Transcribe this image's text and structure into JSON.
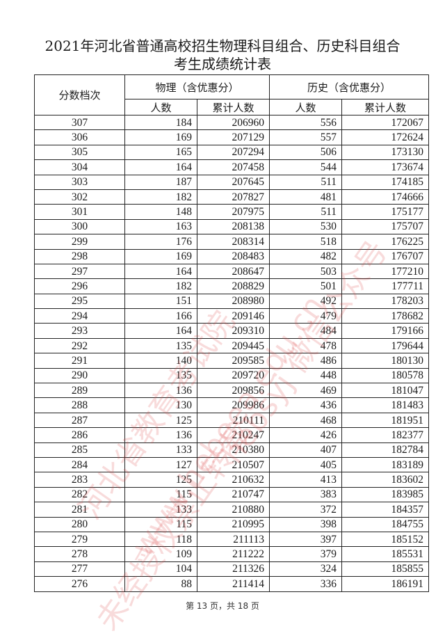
{
  "title": {
    "line1": "2021年河北省普通高校招生物理科目组合、历史科目组合",
    "line2": "考生成绩统计表"
  },
  "table": {
    "header_score": "分数档次",
    "group_physics": "物理（含优惠分）",
    "group_history": "历史（含优惠分）",
    "col_count": "人数",
    "col_cumulative": "累计人数",
    "rows": [
      [
        "307",
        "184",
        "206960",
        "556",
        "172067"
      ],
      [
        "306",
        "169",
        "207129",
        "557",
        "172624"
      ],
      [
        "305",
        "165",
        "207294",
        "506",
        "173130"
      ],
      [
        "304",
        "164",
        "207458",
        "544",
        "173674"
      ],
      [
        "303",
        "187",
        "207645",
        "511",
        "174185"
      ],
      [
        "302",
        "182",
        "207827",
        "481",
        "174666"
      ],
      [
        "301",
        "148",
        "207975",
        "511",
        "175177"
      ],
      [
        "300",
        "163",
        "208138",
        "530",
        "175707"
      ],
      [
        "299",
        "176",
        "208314",
        "518",
        "176225"
      ],
      [
        "298",
        "169",
        "208483",
        "482",
        "176707"
      ],
      [
        "297",
        "164",
        "208647",
        "503",
        "177210"
      ],
      [
        "296",
        "182",
        "208829",
        "501",
        "177711"
      ],
      [
        "295",
        "151",
        "208980",
        "492",
        "178203"
      ],
      [
        "294",
        "166",
        "209146",
        "479",
        "178682"
      ],
      [
        "293",
        "164",
        "209310",
        "484",
        "179166"
      ],
      [
        "292",
        "135",
        "209445",
        "478",
        "179644"
      ],
      [
        "291",
        "140",
        "209585",
        "486",
        "180130"
      ],
      [
        "290",
        "135",
        "209720",
        "448",
        "180578"
      ],
      [
        "289",
        "136",
        "209856",
        "469",
        "181047"
      ],
      [
        "288",
        "130",
        "209986",
        "436",
        "181483"
      ],
      [
        "287",
        "125",
        "210111",
        "468",
        "181951"
      ],
      [
        "286",
        "136",
        "210247",
        "426",
        "182377"
      ],
      [
        "285",
        "133",
        "210380",
        "407",
        "182784"
      ],
      [
        "284",
        "127",
        "210507",
        "405",
        "183189"
      ],
      [
        "283",
        "125",
        "210632",
        "413",
        "183602"
      ],
      [
        "282",
        "115",
        "210747",
        "383",
        "183985"
      ],
      [
        "281",
        "133",
        "210880",
        "372",
        "184357"
      ],
      [
        "280",
        "115",
        "210995",
        "398",
        "184755"
      ],
      [
        "279",
        "118",
        "211113",
        "397",
        "185152"
      ],
      [
        "278",
        "109",
        "211222",
        "379",
        "185531"
      ],
      [
        "277",
        "104",
        "211326",
        "324",
        "185855"
      ],
      [
        "276",
        "88",
        "211414",
        "336",
        "186191"
      ]
    ]
  },
  "footer": "第 13 页，共 18 页",
  "watermark": {
    "lines": [
      "河北省教育考试院",
      "www.hebeea.edu.cn",
      "hebsyj 微信公众号",
      "未经授权禁止转载"
    ],
    "color": "#dc3c3c"
  }
}
